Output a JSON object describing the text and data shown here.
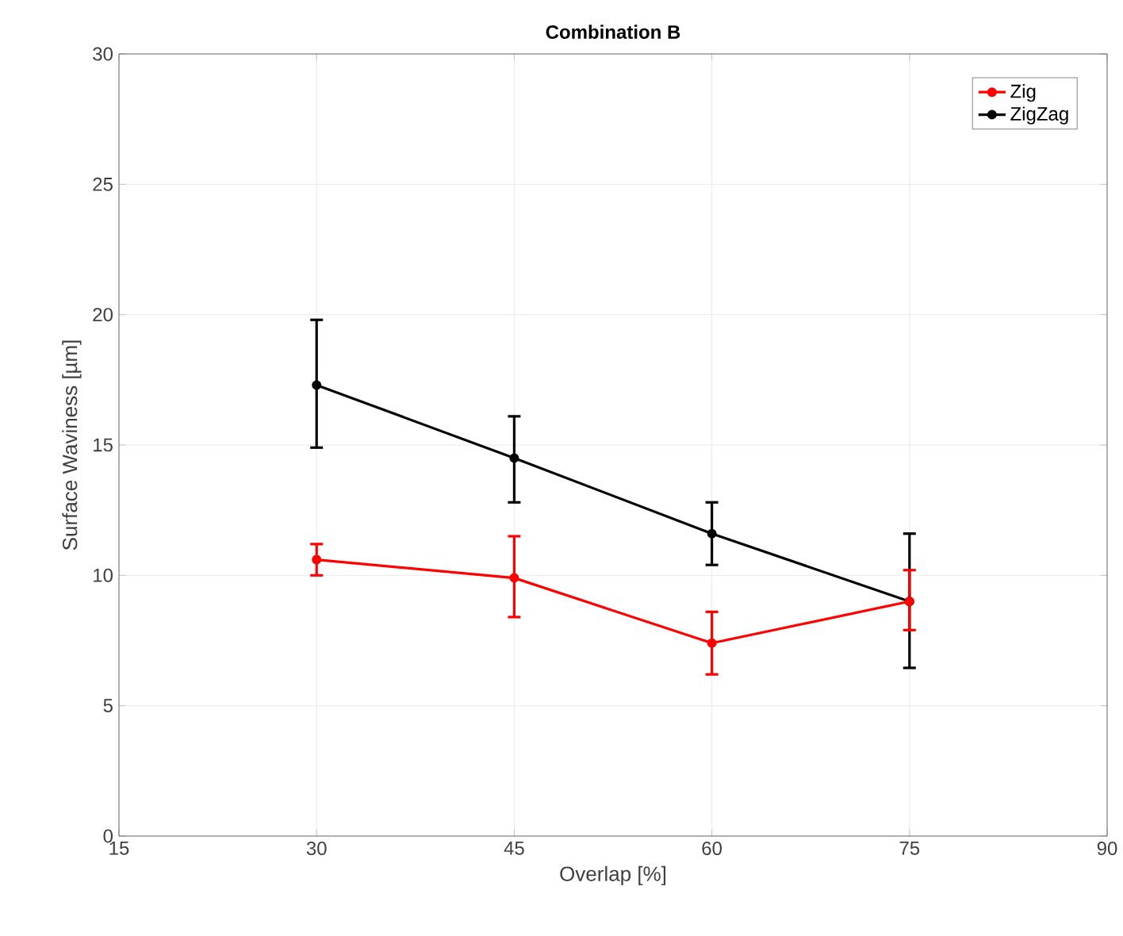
{
  "chart_data": {
    "type": "line",
    "title": "Combination B",
    "xlabel": "Overlap [%]",
    "ylabel": "Surface Waviness [µm]",
    "x": [
      30,
      45,
      60,
      75
    ],
    "series": [
      {
        "name": "Zig",
        "color": "#ff0000",
        "values": [
          10.6,
          9.9,
          7.4,
          9.0
        ],
        "errors": [
          [
            10.0,
            11.2
          ],
          [
            8.4,
            11.5
          ],
          [
            6.2,
            8.6
          ],
          [
            7.9,
            10.2
          ]
        ]
      },
      {
        "name": "ZigZag",
        "color": "#000000",
        "values": [
          17.3,
          14.5,
          11.6,
          9.0
        ],
        "errors": [
          [
            14.9,
            19.8
          ],
          [
            12.8,
            16.1
          ],
          [
            10.4,
            12.8
          ],
          [
            6.45,
            11.6
          ]
        ]
      }
    ],
    "xlim": [
      15,
      90
    ],
    "xticks": [
      15,
      30,
      45,
      60,
      75,
      90
    ],
    "ylim": [
      0,
      30
    ],
    "yticks": [
      0,
      5,
      10,
      15,
      20,
      25,
      30
    ],
    "grid": true,
    "legend": "top right",
    "marker": "circle",
    "line_style": "solid"
  }
}
